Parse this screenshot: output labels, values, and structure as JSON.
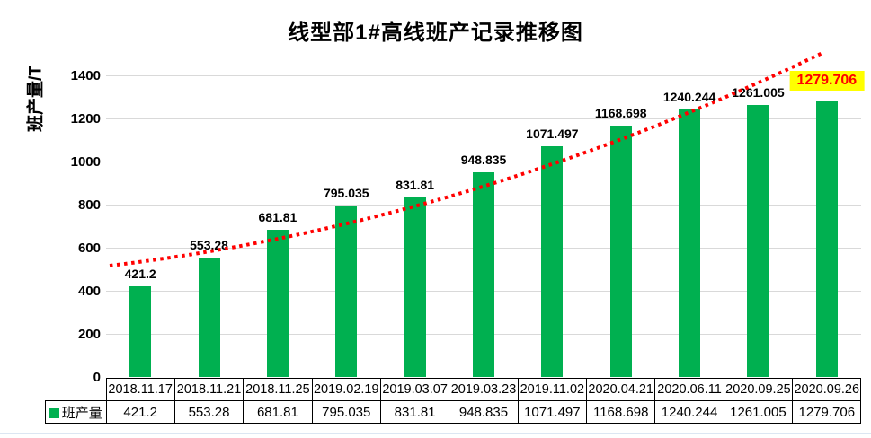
{
  "title": "线型部1#高线班产记录推移图",
  "colors": {
    "bar": "#00B050",
    "trendline": "#FF0000",
    "gridline": "#D9D9D9",
    "highlight_bg": "#FFFF00",
    "highlight_text": "#FF0000",
    "table_border": "#000000",
    "bottom_edge": "#dce6f2"
  },
  "chart_data": {
    "type": "bar",
    "title": "线型部1#高线班产记录推移图",
    "xlabel": "",
    "ylabel": "班产量/T",
    "legend": [
      {
        "label": "班产量",
        "swatch_color": "#00B050",
        "position": "table-row-header"
      }
    ],
    "categories": [
      "2018.11.17",
      "2018.11.21",
      "2018.11.25",
      "2019.02.19",
      "2019.03.07",
      "2019.03.23",
      "2019.11.02",
      "2020.04.21",
      "2020.06.11",
      "2020.09.25",
      "2020.09.26"
    ],
    "series": [
      {
        "name": "班产量",
        "values": [
          421.2,
          553.28,
          681.81,
          795.035,
          831.81,
          948.835,
          1071.497,
          1168.698,
          1240.244,
          1261.005,
          1279.706
        ]
      }
    ],
    "data_labels": [
      "421.2",
      "553.28",
      "681.81",
      "795.035",
      "831.81",
      "948.835",
      "1071.497",
      "1168.698",
      "1240.244",
      "1261.005",
      "1279.706"
    ],
    "highlighted_label_index": 10,
    "ylim": [
      0,
      1400
    ],
    "yticks": [
      0,
      200,
      400,
      600,
      800,
      1000,
      1200,
      1400
    ],
    "grid": true,
    "trendline": {
      "style": "dotted",
      "color": "#FF0000"
    },
    "data_table": {
      "shown": true,
      "row_header": "班产量"
    }
  }
}
